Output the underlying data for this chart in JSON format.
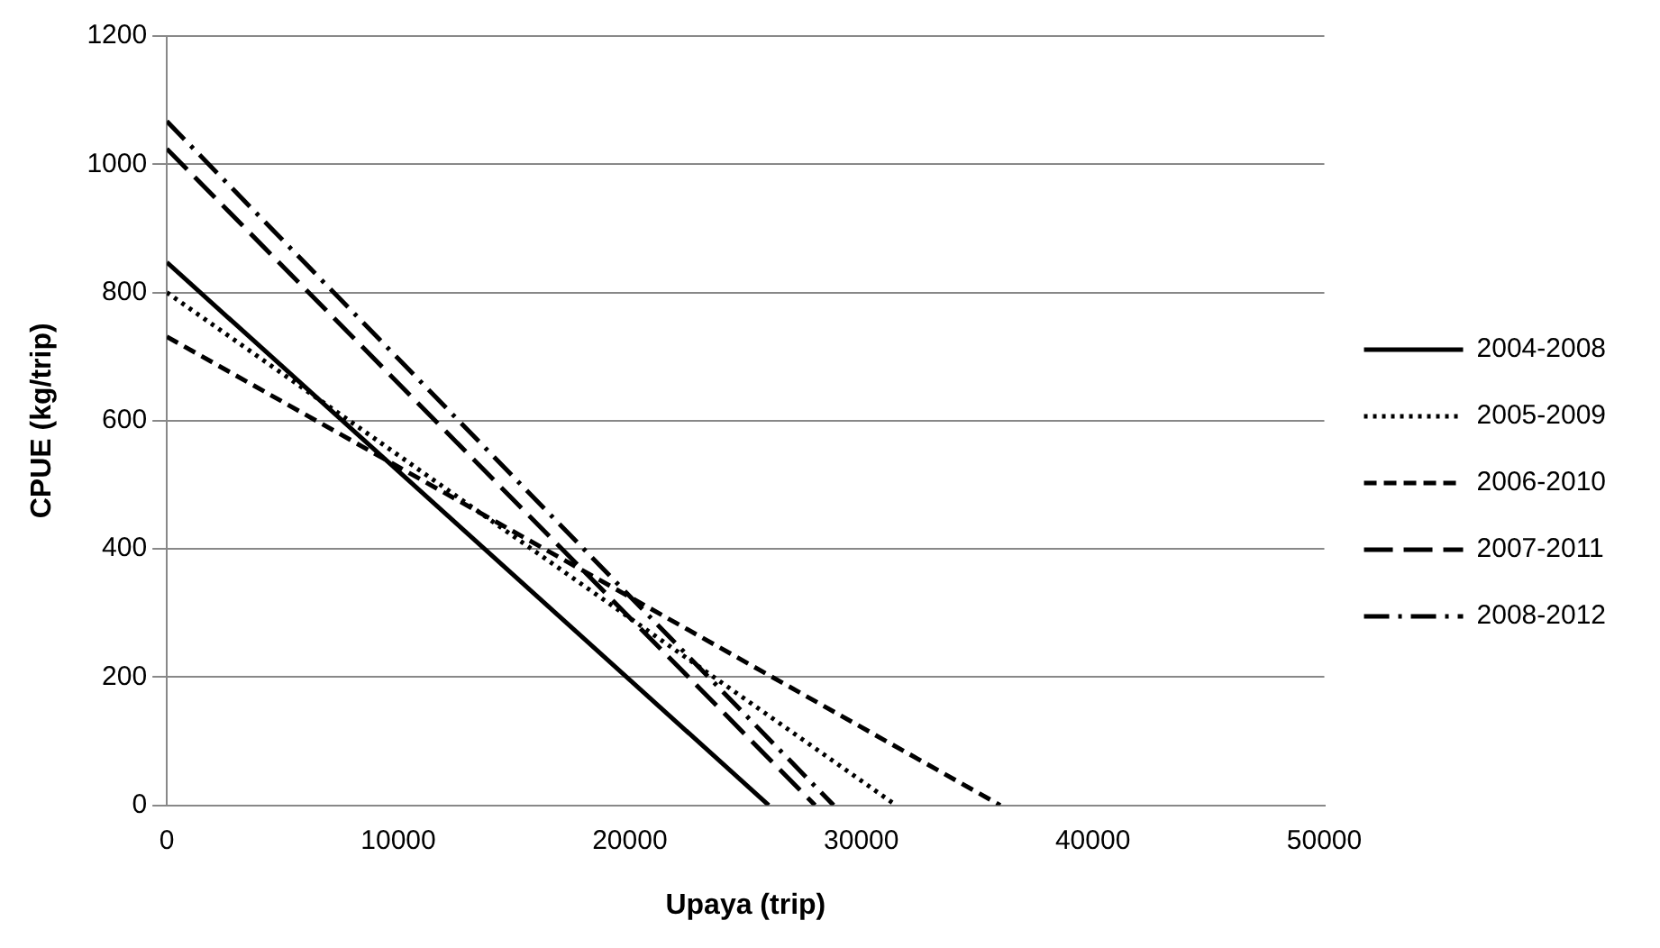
{
  "chart_data": {
    "type": "line",
    "xlabel": "Upaya (trip)",
    "ylabel": "CPUE (kg/trip)",
    "xlim": [
      0,
      50000
    ],
    "xticks": [
      0,
      10000,
      20000,
      30000,
      40000,
      50000
    ],
    "ylim": [
      0,
      1200
    ],
    "yticks": [
      0,
      200,
      400,
      600,
      800,
      1000,
      1200
    ],
    "grid": "y",
    "legend": "right",
    "marker": "none",
    "series": [
      {
        "name": "2004-2008",
        "color": "#000000",
        "line_style": "solid",
        "x": [
          0,
          26000
        ],
        "values": [
          847,
          0
        ]
      },
      {
        "name": "2005-2009",
        "color": "#000000",
        "line_style": "dotted",
        "x": [
          0,
          31500
        ],
        "values": [
          800,
          0
        ]
      },
      {
        "name": "2006-2010",
        "color": "#000000",
        "line_style": "dashed",
        "x": [
          0,
          36000
        ],
        "values": [
          731,
          0
        ]
      },
      {
        "name": "2007-2011",
        "color": "#000000",
        "line_style": "longdash",
        "x": [
          0,
          28000
        ],
        "values": [
          1024,
          0
        ]
      },
      {
        "name": "2008-2012",
        "color": "#000000",
        "line_style": "dashdot",
        "x": [
          0,
          28800
        ],
        "values": [
          1067,
          0
        ]
      }
    ]
  }
}
